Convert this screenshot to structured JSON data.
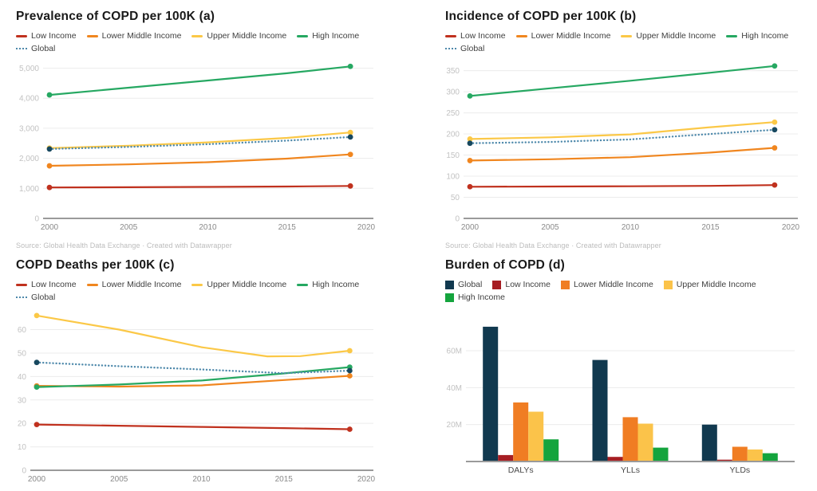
{
  "source_note": "Source: Global Health Data Exchange · Created with Datawrapper",
  "chart_data": [
    {
      "id": "prevalence",
      "type": "line",
      "title": "Prevalence of COPD per 100K (a)",
      "xlim": [
        2000,
        2020
      ],
      "x_ticks": [
        2000,
        2005,
        2010,
        2015,
        2020
      ],
      "x_tick_labels": [
        "2000",
        "2005",
        "2010",
        "2015",
        "2020"
      ],
      "ylim": [
        0,
        5200
      ],
      "y_ticks": [
        0,
        1000,
        2000,
        3000,
        4000,
        5000
      ],
      "y_tick_labels": [
        "0",
        "1,000",
        "2,000",
        "3,000",
        "4,000",
        "5,000"
      ],
      "grid": true,
      "legend_position": "top",
      "series": [
        {
          "name": "Low Income",
          "color": "#c0311e",
          "points": [
            [
              2000,
              1030
            ],
            [
              2005,
              1038
            ],
            [
              2010,
              1048
            ],
            [
              2015,
              1062
            ],
            [
              2019,
              1080
            ]
          ]
        },
        {
          "name": "Lower Middle Income",
          "color": "#f0861f",
          "points": [
            [
              2000,
              1750
            ],
            [
              2005,
              1800
            ],
            [
              2010,
              1870
            ],
            [
              2015,
              1990
            ],
            [
              2019,
              2130
            ]
          ]
        },
        {
          "name": "Upper Middle Income",
          "color": "#fbc847",
          "points": [
            [
              2000,
              2340
            ],
            [
              2005,
              2420
            ],
            [
              2010,
              2530
            ],
            [
              2015,
              2680
            ],
            [
              2019,
              2860
            ]
          ]
        },
        {
          "name": "High Income",
          "color": "#26a862",
          "points": [
            [
              2000,
              4110
            ],
            [
              2005,
              4350
            ],
            [
              2010,
              4590
            ],
            [
              2015,
              4830
            ],
            [
              2019,
              5060
            ]
          ]
        },
        {
          "name": "Global",
          "color": "#4e89ab",
          "dotted": true,
          "dot_color": "#17485f",
          "points": [
            [
              2000,
              2310
            ],
            [
              2005,
              2380
            ],
            [
              2010,
              2470
            ],
            [
              2015,
              2590
            ],
            [
              2019,
              2710
            ]
          ]
        }
      ]
    },
    {
      "id": "incidence",
      "type": "line",
      "title": "Incidence of COPD per 100K (b)",
      "xlim": [
        2000,
        2020
      ],
      "x_ticks": [
        2000,
        2005,
        2010,
        2015,
        2020
      ],
      "x_tick_labels": [
        "2000",
        "2005",
        "2010",
        "2015",
        "2020"
      ],
      "ylim": [
        0,
        370
      ],
      "y_ticks": [
        0,
        50,
        100,
        150,
        200,
        250,
        300,
        350
      ],
      "y_tick_labels": [
        "0",
        "50",
        "100",
        "150",
        "200",
        "250",
        "300",
        "350"
      ],
      "grid": true,
      "legend_position": "top",
      "series": [
        {
          "name": "Low Income",
          "color": "#c0311e",
          "points": [
            [
              2000,
              75
            ],
            [
              2005,
              75.5
            ],
            [
              2010,
              76
            ],
            [
              2015,
              77
            ],
            [
              2019,
              79
            ]
          ]
        },
        {
          "name": "Lower Middle Income",
          "color": "#f0861f",
          "points": [
            [
              2000,
              137
            ],
            [
              2005,
              140
            ],
            [
              2010,
              145
            ],
            [
              2015,
              156
            ],
            [
              2019,
              167
            ]
          ]
        },
        {
          "name": "Upper Middle Income",
          "color": "#fbc847",
          "points": [
            [
              2000,
              188
            ],
            [
              2005,
              192
            ],
            [
              2010,
              199
            ],
            [
              2015,
              216
            ],
            [
              2019,
              228
            ]
          ]
        },
        {
          "name": "High Income",
          "color": "#26a862",
          "points": [
            [
              2000,
              290
            ],
            [
              2005,
              308
            ],
            [
              2010,
              326
            ],
            [
              2015,
              345
            ],
            [
              2019,
              361
            ]
          ]
        },
        {
          "name": "Global",
          "color": "#4e89ab",
          "dotted": true,
          "dot_color": "#17485f",
          "points": [
            [
              2000,
              178
            ],
            [
              2005,
              181
            ],
            [
              2010,
              187
            ],
            [
              2015,
              200
            ],
            [
              2019,
              210
            ]
          ]
        }
      ]
    },
    {
      "id": "deaths",
      "type": "line",
      "title": "COPD Deaths per 100K (c)",
      "xlim": [
        2000,
        2020
      ],
      "x_ticks": [
        2000,
        2005,
        2010,
        2015,
        2020
      ],
      "x_tick_labels": [
        "2000",
        "2005",
        "2010",
        "2015",
        "2020"
      ],
      "ylim": [
        0,
        68
      ],
      "y_ticks": [
        0,
        10,
        20,
        30,
        40,
        50,
        60
      ],
      "y_tick_labels": [
        "0",
        "10",
        "20",
        "30",
        "40",
        "50",
        "60"
      ],
      "grid": true,
      "legend_position": "top",
      "series": [
        {
          "name": "Low Income",
          "color": "#c0311e",
          "points": [
            [
              2000,
              19.5
            ],
            [
              2005,
              19
            ],
            [
              2010,
              18.5
            ],
            [
              2015,
              18
            ],
            [
              2019,
              17.5
            ]
          ]
        },
        {
          "name": "Lower Middle Income",
          "color": "#f0861f",
          "points": [
            [
              2000,
              36
            ],
            [
              2005,
              35.7
            ],
            [
              2010,
              36.2
            ],
            [
              2015,
              38.5
            ],
            [
              2019,
              40.3
            ]
          ]
        },
        {
          "name": "Upper Middle Income",
          "color": "#fbc847",
          "points": [
            [
              2000,
              66
            ],
            [
              2005,
              60
            ],
            [
              2010,
              52.5
            ],
            [
              2014,
              48.6
            ],
            [
              2016,
              48.7
            ],
            [
              2019,
              51
            ]
          ]
        },
        {
          "name": "High Income",
          "color": "#26a862",
          "points": [
            [
              2000,
              35.5
            ],
            [
              2005,
              36.6
            ],
            [
              2010,
              38.3
            ],
            [
              2015,
              41.3
            ],
            [
              2019,
              44
            ]
          ]
        },
        {
          "name": "Global",
          "color": "#4e89ab",
          "dotted": true,
          "dot_color": "#17485f",
          "points": [
            [
              2000,
              46
            ],
            [
              2005,
              44.4
            ],
            [
              2010,
              43
            ],
            [
              2015,
              41.4
            ],
            [
              2019,
              42.5
            ]
          ]
        }
      ]
    },
    {
      "id": "burden",
      "type": "bar",
      "title": "Burden of COPD (d)",
      "categories": [
        "DALYs",
        "YLLs",
        "YLDs"
      ],
      "ylim": [
        0,
        76
      ],
      "y_ticks": [
        20,
        40,
        60
      ],
      "y_tick_labels": [
        "20M",
        "40M",
        "60M"
      ],
      "grid": true,
      "legend_position": "top",
      "unit": "M",
      "series": [
        {
          "name": "Global",
          "color": "#11394f",
          "values": [
            73,
            55,
            20
          ]
        },
        {
          "name": "Low Income",
          "color": "#a61e23",
          "values": [
            3.5,
            2.5,
            1
          ]
        },
        {
          "name": "Lower Middle Income",
          "color": "#f07d23",
          "values": [
            32,
            24,
            8
          ]
        },
        {
          "name": "Upper Middle Income",
          "color": "#fbc34a",
          "values": [
            27,
            20.5,
            6.5
          ]
        },
        {
          "name": "High Income",
          "color": "#14a43d",
          "values": [
            12,
            7.5,
            4.5
          ]
        }
      ]
    }
  ]
}
